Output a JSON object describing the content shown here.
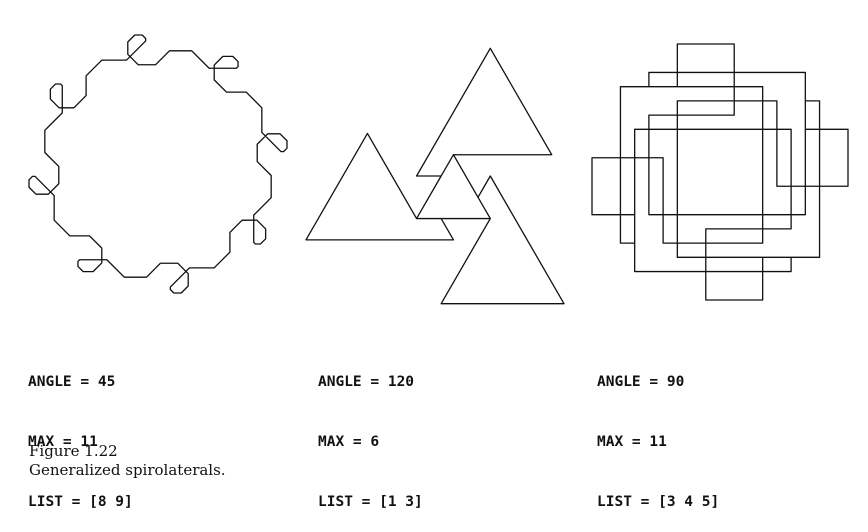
{
  "panels": [
    {
      "angle_line": "ANGLE = 45",
      "max_line": "MAX = 11",
      "list_line": "LIST = [8 9]",
      "angle": 45,
      "max": 11,
      "list": [
        8,
        9
      ]
    },
    {
      "angle_line": "ANGLE = 120",
      "max_line": "MAX = 6",
      "list_line": "LIST = [1 3]",
      "angle": 120,
      "max": 6,
      "list": [
        1,
        3
      ]
    },
    {
      "angle_line": "ANGLE = 90",
      "max_line": "MAX = 11",
      "list_line": "LIST = [3 4 5]",
      "angle": 90,
      "max": 11,
      "list": [
        3,
        4,
        5
      ]
    }
  ],
  "caption": {
    "figure_label": "Figure 1.22",
    "text": "Generalized spirolaterals."
  },
  "style": {
    "ink_color": "#111111",
    "background": "#ffffff"
  }
}
